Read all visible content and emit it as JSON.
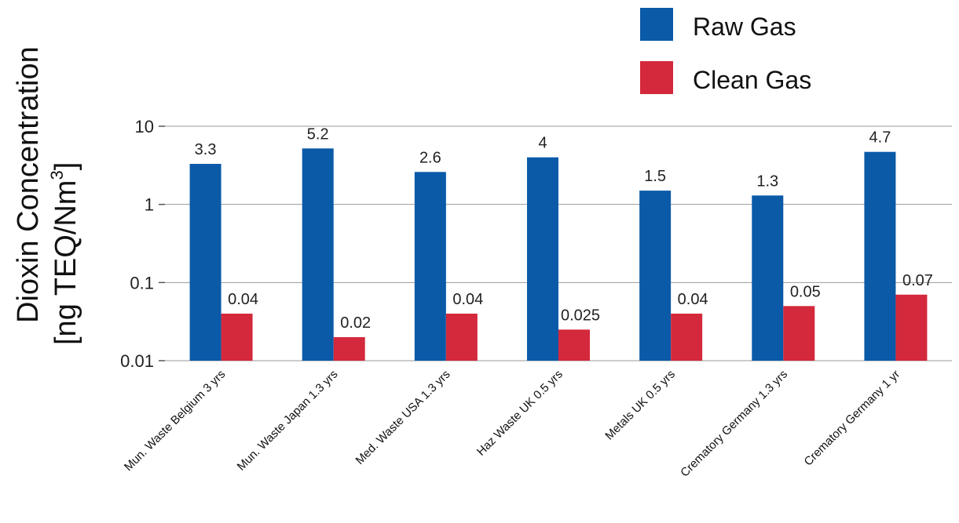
{
  "chart_data": {
    "type": "bar",
    "y_scale": "log",
    "ylim": [
      0.01,
      10
    ],
    "yticks": [
      {
        "value": 10,
        "label": "10"
      },
      {
        "value": 1,
        "label": "1"
      },
      {
        "value": 0.1,
        "label": "0.1"
      },
      {
        "value": 0.01,
        "label": "0.01"
      }
    ],
    "ylabel_line1": "Dioxin Concentration",
    "ylabel_line2_prefix": "[ng TEQ/Nm",
    "ylabel_line2_sup": "3",
    "ylabel_line2_suffix": "]",
    "grid": true,
    "legend_position": "top-right",
    "categories": [
      "Mun. Waste Belgium 3 yrs",
      "Mun. Waste Japan 1.3 yrs",
      "Med. Waste USA 1.3 yrs",
      "Haz Waste UK 0.5 yrs",
      "Metals UK 0.5 yrs",
      "Crematory Germany 1.3 yrs",
      "Crematory Germany 1 yr"
    ],
    "series": [
      {
        "name": "Raw Gas",
        "color": "#0a5aa8",
        "values": [
          3.3,
          5.2,
          2.6,
          4,
          1.5,
          1.3,
          4.7
        ],
        "labels": [
          "3.3",
          "5.2",
          "2.6",
          "4",
          "1.5",
          "1.3",
          "4.7"
        ]
      },
      {
        "name": "Clean Gas",
        "color": "#d4283c",
        "values": [
          0.04,
          0.02,
          0.04,
          0.025,
          0.04,
          0.05,
          0.07
        ],
        "labels": [
          "0.04",
          "0.02",
          "0.04",
          "0.025",
          "0.04",
          "0.05",
          "0.07"
        ]
      }
    ]
  }
}
